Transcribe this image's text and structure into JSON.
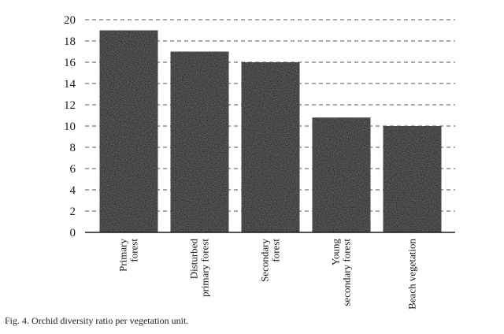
{
  "caption": "Fig. 4. Orchid diversity ratio per vegetation unit.",
  "chart_data": {
    "type": "bar",
    "title": "",
    "xlabel": "",
    "ylabel": "",
    "categories": [
      [
        "Primary",
        "forest"
      ],
      [
        "Disturbed",
        "primary forest"
      ],
      [
        "Secondary",
        "forest"
      ],
      [
        "Young",
        "secondary forest"
      ],
      [
        "Beach vegetation"
      ]
    ],
    "values": [
      19,
      17,
      16,
      10.8,
      10
    ],
    "yticks": [
      0,
      2,
      4,
      6,
      8,
      10,
      12,
      14,
      16,
      18,
      20
    ],
    "ylim": [
      0,
      20
    ],
    "grid": "horizontal dashed",
    "bar_color": "#1c1c1c"
  }
}
